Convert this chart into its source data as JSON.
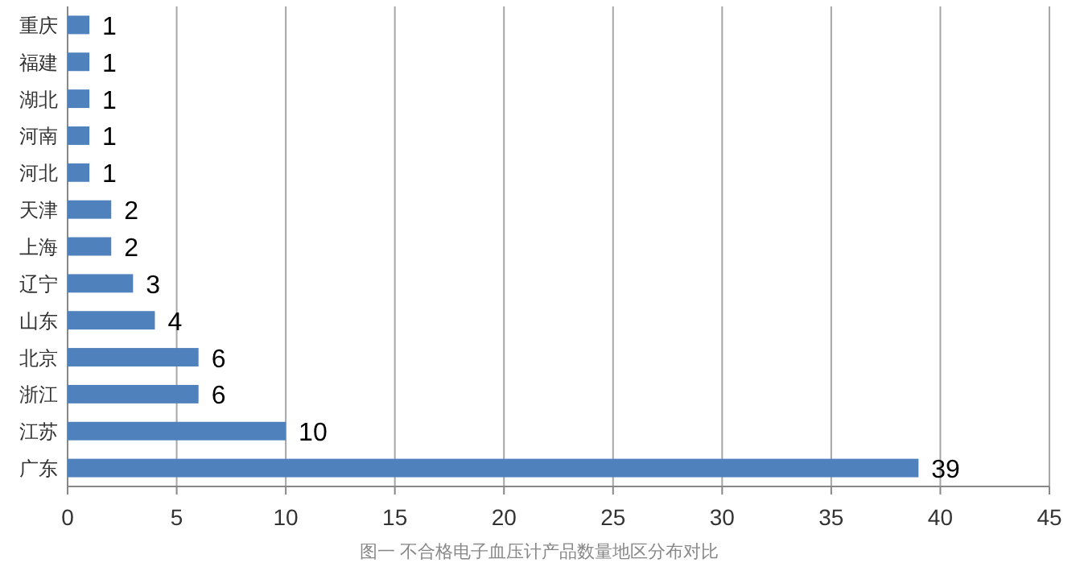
{
  "chart_data": {
    "type": "bar",
    "orientation": "horizontal",
    "categories": [
      "重庆",
      "福建",
      "湖北",
      "河南",
      "河北",
      "天津",
      "上海",
      "辽宁",
      "山东",
      "北京",
      "浙江",
      "江苏",
      "广东"
    ],
    "values": [
      1,
      1,
      1,
      1,
      1,
      2,
      2,
      3,
      4,
      6,
      6,
      10,
      39
    ],
    "color": "#4f81bd",
    "xlim": [
      0,
      45
    ],
    "xticks": [
      0,
      5,
      10,
      15,
      20,
      25,
      30,
      35,
      40,
      45
    ],
    "grid": "x",
    "data_labels": true,
    "annotations": [
      "图一  不合格电子血压计产品数量地区分布对比"
    ]
  }
}
